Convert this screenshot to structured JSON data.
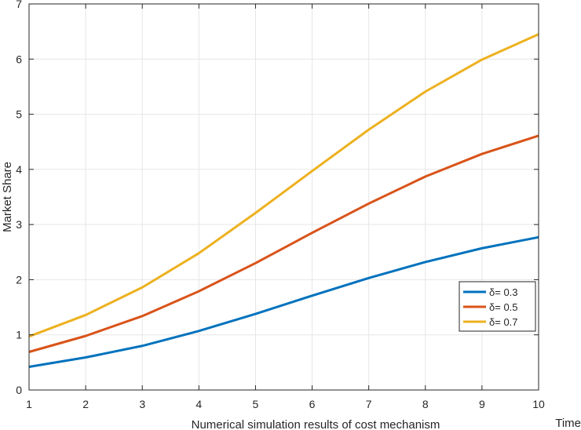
{
  "chart_data": {
    "type": "line",
    "x": [
      1,
      2,
      3,
      4,
      5,
      6,
      7,
      8,
      9,
      10
    ],
    "xlabel": "Time",
    "ylabel": "Market Share",
    "caption": "Numerical simulation results of cost mechanism",
    "xlim": [
      1,
      10
    ],
    "ylim": [
      0,
      7
    ],
    "xticks": [
      1,
      2,
      3,
      4,
      5,
      6,
      7,
      8,
      9,
      10
    ],
    "yticks": [
      0,
      1,
      2,
      3,
      4,
      5,
      6,
      7
    ],
    "grid": true,
    "legend_position": "lower-right",
    "series": [
      {
        "name": "δ= 0.3",
        "color": "#0072BD",
        "values": [
          0.42,
          0.59,
          0.8,
          1.07,
          1.38,
          1.71,
          2.03,
          2.32,
          2.57,
          2.77
        ]
      },
      {
        "name": "δ= 0.5",
        "color": "#D95319",
        "values": [
          0.69,
          0.98,
          1.34,
          1.79,
          2.3,
          2.85,
          3.38,
          3.87,
          4.28,
          4.61
        ]
      },
      {
        "name": "δ= 0.7",
        "color": "#EDB120",
        "values": [
          0.97,
          1.36,
          1.86,
          2.48,
          3.21,
          3.97,
          4.72,
          5.41,
          5.99,
          6.45
        ]
      }
    ]
  }
}
